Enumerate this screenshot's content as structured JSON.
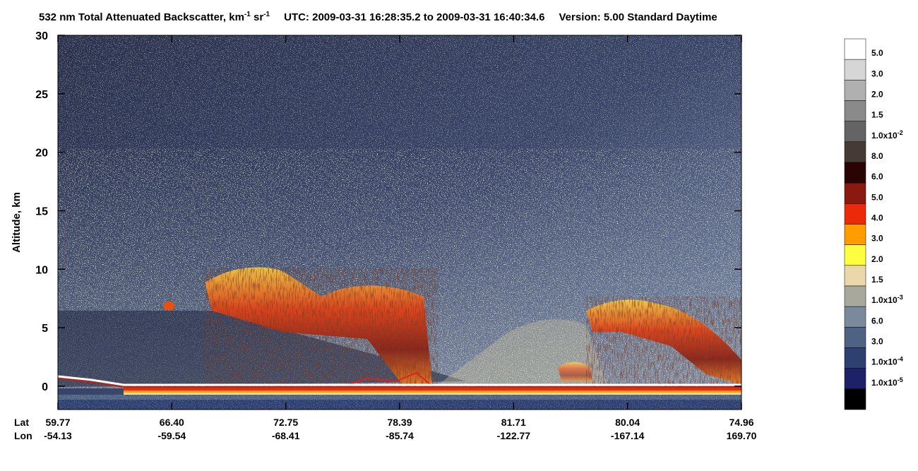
{
  "chart_data": {
    "type": "lidar-curtain",
    "title": {
      "main": "532 nm Total Attenuated Backscatter, km",
      "exp1": "-1",
      "unit2": " sr",
      "exp2": "-1",
      "utc": "UTC:  2009-03-31 16:28:35.2  to  2009-03-31 16:40:34.6",
      "version": "Version: 5.00  Standard  Daytime"
    },
    "ylabel": "Altitude, km",
    "ylim": [
      -2,
      30
    ],
    "yticks": [
      0,
      5,
      10,
      15,
      20,
      25,
      30
    ],
    "lat_label": "Lat",
    "lon_label": "Lon",
    "lat": [
      "59.77",
      "66.40",
      "72.75",
      "78.39",
      "81.71",
      "80.04",
      "74.96"
    ],
    "lon": [
      "-54.13",
      "-59.54",
      "-68.41",
      "-85.74",
      "-122.77",
      "-167.14",
      "169.70"
    ],
    "colorbar": {
      "colors": [
        "#ffffff",
        "#d6d6d6",
        "#b0b0b0",
        "#8a8a8a",
        "#646464",
        "#463a36",
        "#2a0303",
        "#8a1a10",
        "#ec2a0a",
        "#ff9c00",
        "#ffff40",
        "#ead8aa",
        "#a8a99c",
        "#7a8a9c",
        "#4e6284",
        "#2e3f72",
        "#1d2268",
        "#000000"
      ],
      "labels": [
        "5.0",
        "3.0",
        "2.0",
        "1.5",
        {
          "mantissa": "1.0x10",
          "exp": "-2"
        },
        "8.0",
        "6.0",
        "5.0",
        "4.0",
        "3.0",
        "2.0",
        "1.5",
        {
          "mantissa": "1.0x10",
          "exp": "-3"
        },
        "6.0",
        "3.0",
        {
          "mantissa": "1.0x10",
          "exp": "-4"
        },
        {
          "mantissa": "1.0x10",
          "exp": "-5"
        }
      ]
    }
  }
}
